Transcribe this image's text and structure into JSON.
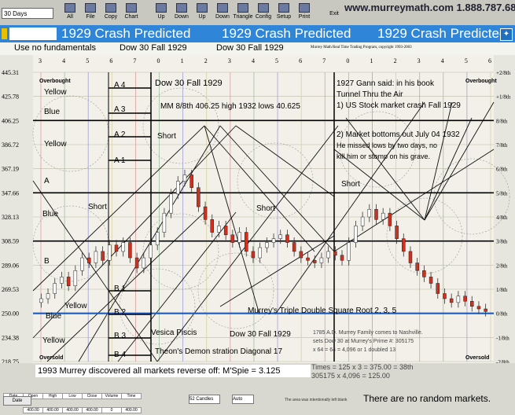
{
  "toolbar": {
    "combo": "30 Days",
    "buttons": [
      "All",
      "File",
      "Copy",
      "Chart",
      "Up",
      "Down",
      "Up",
      "Down",
      "Triangle",
      "Config",
      "Setup",
      "Print",
      "Exit"
    ],
    "url": "www.murreymath.com 1.888.787.6849"
  },
  "banner": {
    "titles": [
      "1929 Crash Predicted",
      "1929 Crash Predicted",
      "1929 Crash Predicted"
    ]
  },
  "subhead": {
    "left": "Use no fundamentals",
    "mid1": "Dow 30 Fall 1929",
    "mid2": "Dow 30 Fall 1929",
    "copyright": "Murrey Math Real Time Trading Program, copyright 1993-2003"
  },
  "chart": {
    "x_ticks": [
      "3",
      "4",
      "5",
      "6",
      "7",
      "0",
      "1",
      "2",
      "3",
      "4",
      "5",
      "6",
      "7",
      "0",
      "1",
      "2",
      "3",
      "4",
      "5",
      "6"
    ],
    "y_left": [
      "445.31",
      "425.78",
      "406.25",
      "386.72",
      "367.19",
      "347.66",
      "328.13",
      "308.59",
      "289.06",
      "269.53",
      "250.00",
      "234.38",
      "218.75"
    ],
    "y_right": [
      "+2/8th",
      "+1/8th",
      "8/8th",
      "7/8th",
      "6/8th",
      "5/8th",
      "4/8th",
      "3/8th",
      "2/8th",
      "1/8th",
      "0/8th",
      "-1/8th",
      "-2/8th"
    ],
    "labels": {
      "overbought_left": "Overbought",
      "overbought_right": "Overbought",
      "oversold_left": "Oversold",
      "oversold_right": "Oversold",
      "yellow1": "Yellow",
      "blue1": "Blue",
      "yellow2": "Yellow",
      "a": "A",
      "blue2": "Blue",
      "short1": "Short",
      "b": "B",
      "yellow3": "Yellow",
      "blue3": "Blue",
      "yellow4": "Yellow",
      "a4": "A 4",
      "a3": "A 3",
      "a2": "A 2",
      "a1": "A 1",
      "b1": "B 1",
      "b2": "B 2",
      "b3": "B 3",
      "b4": "B 4",
      "dow_title": "Dow 30 Fall 1929",
      "mm": "MM 8/8th 406.25 high 1932 lows 40.625",
      "short2": "Short",
      "short3": "Short",
      "short4": "Short",
      "gann1": "1927 Gann said: in his book",
      "gann2": "Tunnel Thru the Air",
      "gann3": "1) US Stock market crash Fall 1929",
      "gann4": "2) Market bottoms out July 04 1932",
      "gann5": "He missed lows by two days, no",
      "gann6": "kill him or stomp on his grave.",
      "triple": "Murrey's Triple Double Square Root 2, 3, 5",
      "vesica": "Vesica Piscis",
      "dow_bottom": "Dow 30 Fall 1929",
      "theon": "Theon's Demon stration Diagonal 17",
      "family1": "1785 A.D. Murrey Family comes to Nashville.",
      "family2": "sets Dow 30 at Murrey's Prime #: 305175",
      "family3": "x 64 = 64 = 4,096 or 1 doubled 13"
    }
  },
  "bottom": {
    "note": "1993 Murrey discovered all markets reverse off: M'Spie = 3.125",
    "calc1": "Times = 125 x 3 = 375.00 = 38th",
    "calc2": "305175 x 4,096 = 125.00",
    "headers": [
      "Date",
      "Open",
      "High",
      "Low",
      "Close",
      "Volume",
      "Time"
    ],
    "cells": [
      "400.00",
      "400.00",
      "400.00",
      "400.00",
      "0",
      "400.00",
      "0"
    ],
    "sel1": "52 Candles",
    "sel2": "Auto",
    "small_text": "The area was intentionally left blank",
    "norandom": "There are no random markets."
  },
  "colors": {
    "banner": "#2f86d8",
    "grid": "#888",
    "candle_red": "#d03020",
    "candle_white": "#ffffff"
  }
}
